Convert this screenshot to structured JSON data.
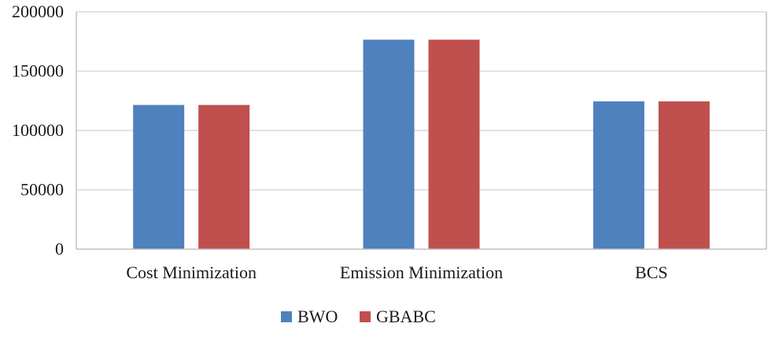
{
  "chart_data": {
    "type": "bar",
    "categories": [
      "Cost Minimization",
      "Emission Minimization",
      "BCS"
    ],
    "series": [
      {
        "name": "BWO",
        "values": [
          121500,
          176500,
          124500
        ],
        "color": "#4f81bd"
      },
      {
        "name": "GBABC",
        "values": [
          121500,
          176500,
          124500
        ],
        "color": "#c0504d"
      }
    ],
    "yticks": [
      0,
      50000,
      100000,
      150000,
      200000
    ],
    "ylim": [
      0,
      200000
    ],
    "title": "",
    "xlabel": "",
    "ylabel": "",
    "grid": true,
    "legend_position": "bottom-center"
  }
}
